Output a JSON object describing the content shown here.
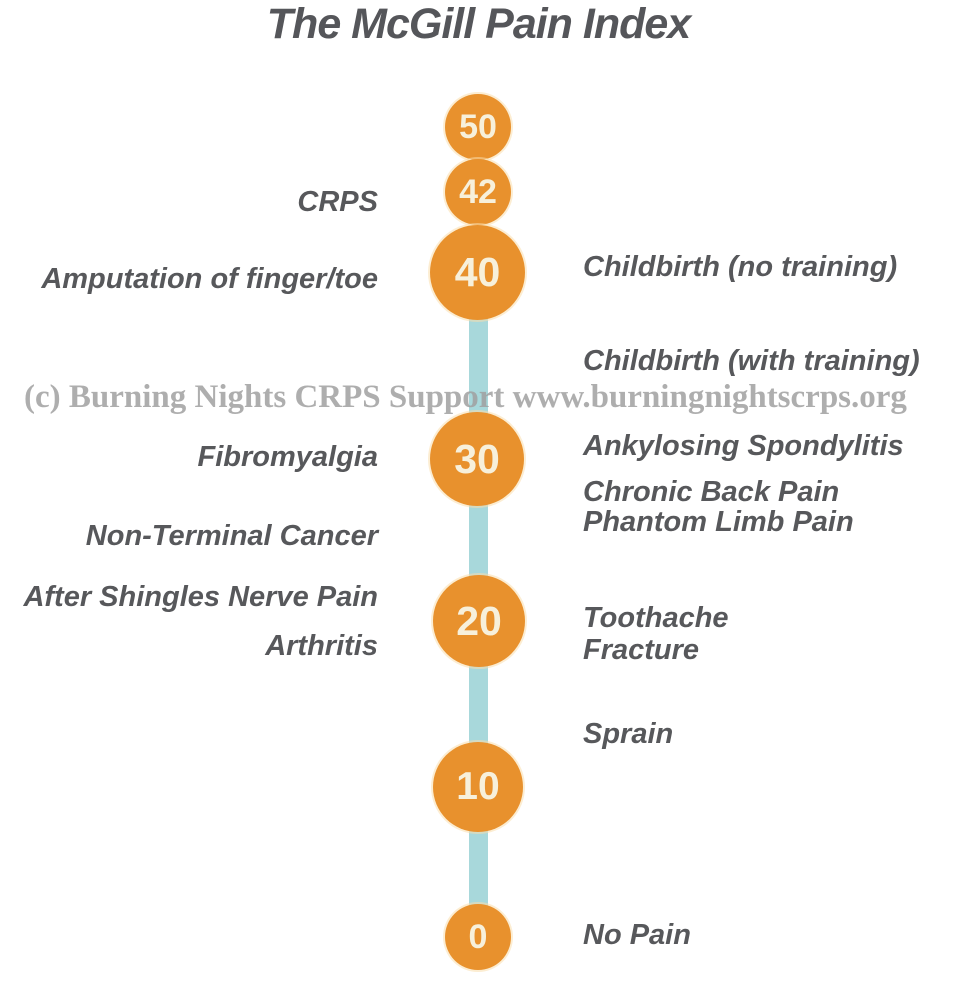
{
  "title": "The McGill Pain Index",
  "watermark": "(c) Burning Nights CRPS Support  www.burningnightscrps.org",
  "colors": {
    "circle_orange": "#E8912D",
    "line_teal": "#A8D8DB",
    "label_gray": "#57585B",
    "number_cream": "#F7F0DB",
    "watermark_gray": "#A0A0A0"
  },
  "chart_data": {
    "type": "scale",
    "title": "The McGill Pain Index",
    "axis_range": [
      0,
      50
    ],
    "axis_points": [
      "50",
      "42",
      "40",
      "30",
      "20",
      "10",
      "0"
    ],
    "left_labels": [
      {
        "label": "CRPS"
      },
      {
        "label": "Amputation of finger/toe"
      },
      {
        "label": "Fibromyalgia"
      },
      {
        "label": "Non-Terminal Cancer"
      },
      {
        "label": "After Shingles Nerve Pain"
      },
      {
        "label": "Arthritis"
      }
    ],
    "right_labels": [
      {
        "label": "Childbirth (no training)"
      },
      {
        "label": "Childbirth (with training)"
      },
      {
        "label": "Ankylosing Spondylitis"
      },
      {
        "label": "Chronic Back Pain"
      },
      {
        "label": "Phantom Limb Pain"
      },
      {
        "label": "Toothache"
      },
      {
        "label": "Fracture"
      },
      {
        "label": "Sprain"
      },
      {
        "label": "No Pain"
      }
    ]
  }
}
